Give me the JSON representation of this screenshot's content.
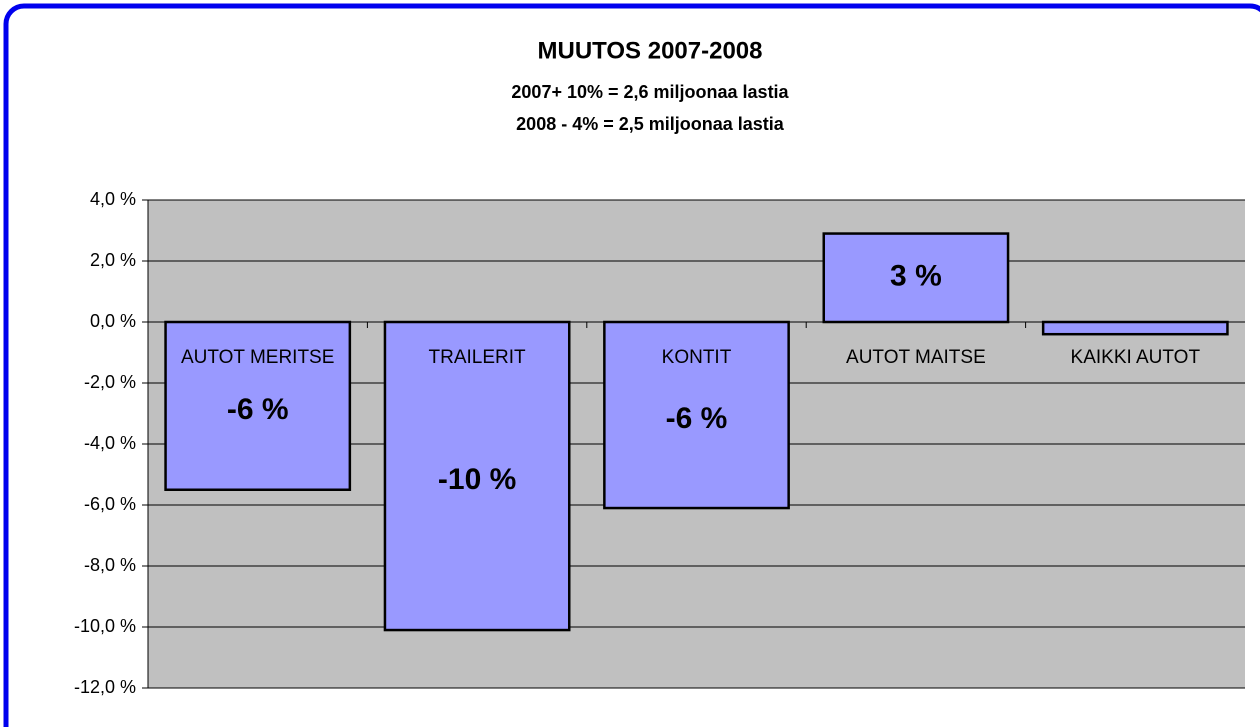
{
  "chart_data": {
    "type": "bar",
    "title": "MUUTOS 2007-2008",
    "subtitle": [
      "2007+ 10% =  2,6 miljoonaa lastia",
      "2008 -  4% =  2,5 miljoonaa lastia"
    ],
    "categories": [
      "AUTOT MERITSE",
      "TRAILERIT",
      "KONTIT",
      "AUTOT MAITSE",
      "KAIKKI AUTOT"
    ],
    "values": [
      -5.5,
      -10.1,
      -6.1,
      2.9,
      -0.4
    ],
    "value_labels": [
      "-6 %",
      "-10 %",
      "-6 %",
      "3 %",
      null
    ],
    "color": "#9999ff",
    "ylim": [
      -12,
      4
    ],
    "yticks": [
      {
        "value": 4,
        "label": "4,0 %"
      },
      {
        "value": 2,
        "label": "2,0 %"
      },
      {
        "value": 0,
        "label": "0,0 %"
      },
      {
        "value": -2,
        "label": "-2,0 %"
      },
      {
        "value": -4,
        "label": "-4,0 %"
      },
      {
        "value": -6,
        "label": "-6,0 %"
      },
      {
        "value": -8,
        "label": "-8,0 %"
      },
      {
        "value": -10,
        "label": "-10,0 %"
      },
      {
        "value": -12,
        "label": "-12,0 %"
      }
    ],
    "grid": true
  }
}
